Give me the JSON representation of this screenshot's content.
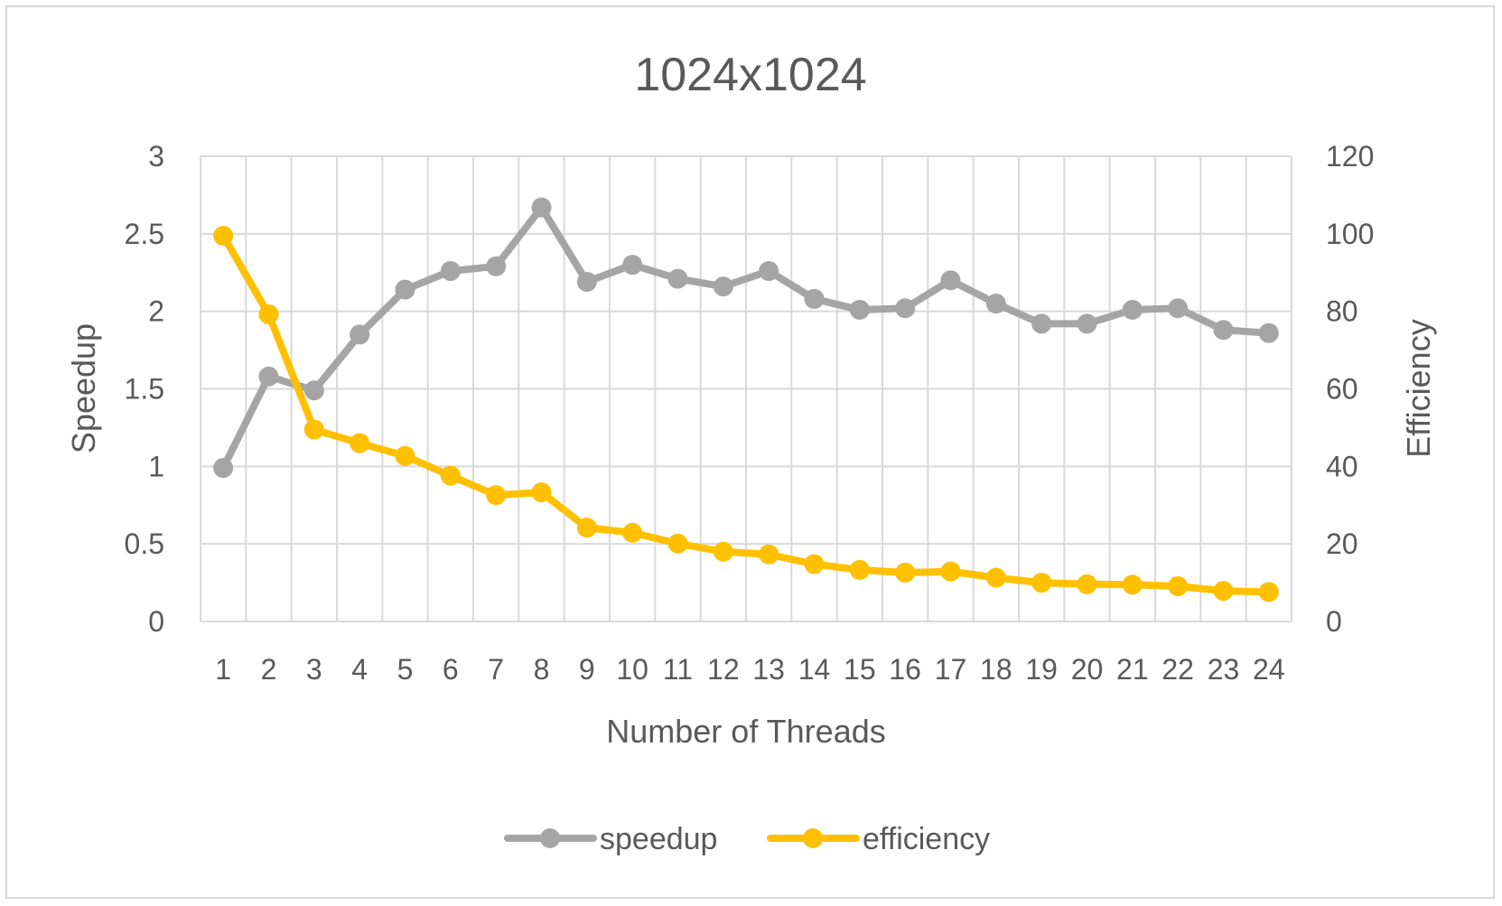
{
  "chart_data": {
    "type": "line",
    "title": "1024x1024",
    "xlabel": "Number of Threads",
    "ylabel": "Speedup",
    "y2label": "Efficiency",
    "categories": [
      "1",
      "2",
      "3",
      "4",
      "5",
      "6",
      "7",
      "8",
      "9",
      "10",
      "11",
      "12",
      "13",
      "14",
      "15",
      "16",
      "17",
      "18",
      "19",
      "20",
      "21",
      "22",
      "23",
      "24"
    ],
    "ylim": [
      0,
      3
    ],
    "y2lim": [
      0,
      120
    ],
    "yticks": [
      "0",
      "0.5",
      "1",
      "1.5",
      "2",
      "2.5",
      "3"
    ],
    "y2ticks": [
      "0",
      "20",
      "40",
      "60",
      "80",
      "100",
      "120"
    ],
    "grid": true,
    "legend_position": "bottom",
    "series": [
      {
        "name": "speedup",
        "axis": "left",
        "color": "#a5a5a5",
        "values": [
          0.99,
          1.58,
          1.49,
          1.85,
          2.14,
          2.26,
          2.29,
          2.67,
          2.19,
          2.3,
          2.21,
          2.16,
          2.26,
          2.08,
          2.01,
          2.02,
          2.2,
          2.05,
          1.92,
          1.92,
          2.01,
          2.02,
          1.88,
          1.86
        ]
      },
      {
        "name": "efficiency",
        "axis": "right",
        "color": "#ffc000",
        "values": [
          99.5,
          79.2,
          49.5,
          46.0,
          42.7,
          37.6,
          32.6,
          33.3,
          24.2,
          22.9,
          20.1,
          18.0,
          17.3,
          14.8,
          13.3,
          12.6,
          12.9,
          11.3,
          10.0,
          9.6,
          9.5,
          9.1,
          7.9,
          7.6
        ]
      }
    ]
  }
}
